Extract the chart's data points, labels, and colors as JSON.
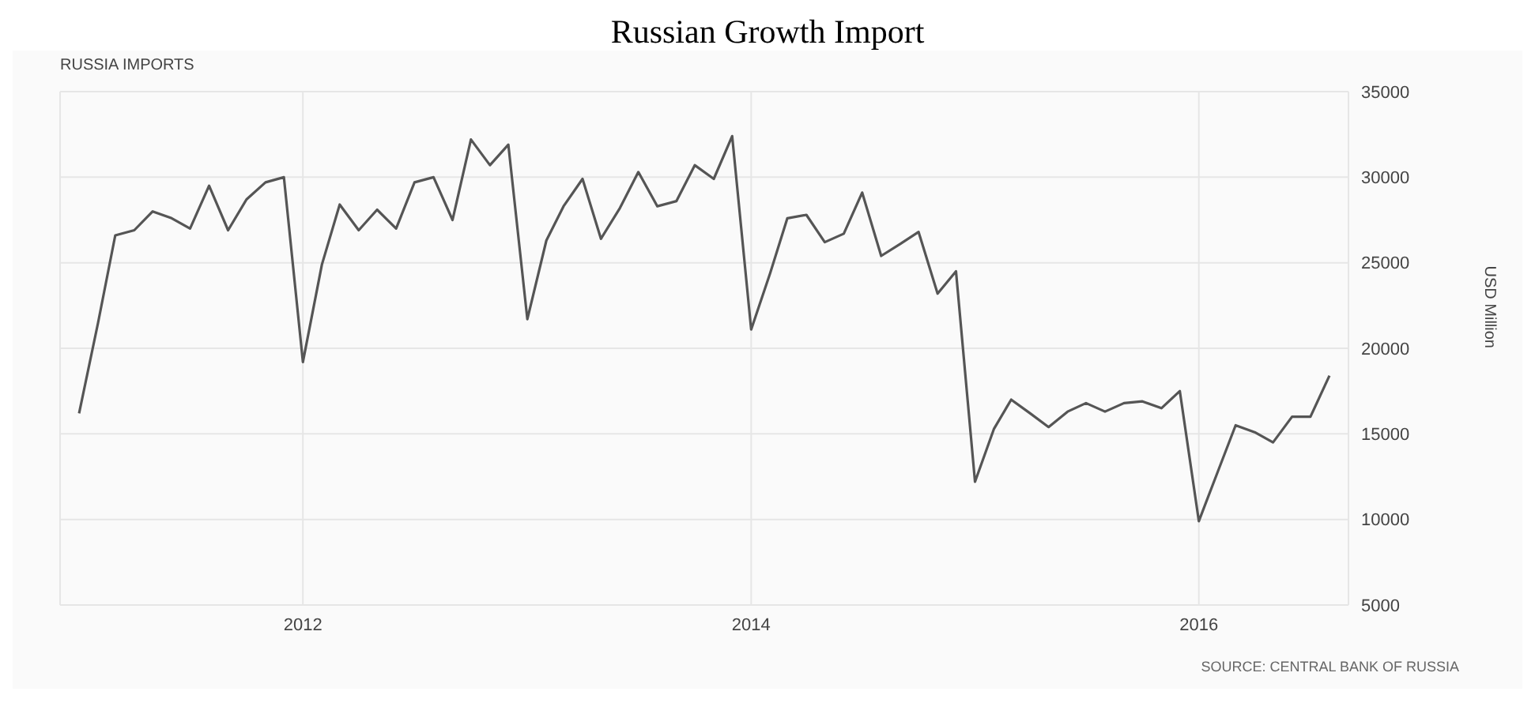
{
  "chart_data": {
    "type": "line",
    "title": "Russian Growth Import",
    "subtitle": "RUSSIA IMPORTS",
    "ylabel": "USD Million",
    "annotations": [
      "SOURCE: CENTRAL BANK OF RUSSIA"
    ],
    "x": [
      "2011-01",
      "2011-02",
      "2011-03",
      "2011-04",
      "2011-05",
      "2011-06",
      "2011-07",
      "2011-08",
      "2011-09",
      "2011-10",
      "2011-11",
      "2011-12",
      "2012-01",
      "2012-02",
      "2012-03",
      "2012-04",
      "2012-05",
      "2012-06",
      "2012-07",
      "2012-08",
      "2012-09",
      "2012-10",
      "2012-11",
      "2012-12",
      "2013-01",
      "2013-02",
      "2013-03",
      "2013-04",
      "2013-05",
      "2013-06",
      "2013-07",
      "2013-08",
      "2013-09",
      "2013-10",
      "2013-11",
      "2013-12",
      "2014-01",
      "2014-02",
      "2014-03",
      "2014-04",
      "2014-05",
      "2014-06",
      "2014-07",
      "2014-08",
      "2014-09",
      "2014-10",
      "2014-11",
      "2014-12",
      "2015-01",
      "2015-02",
      "2015-03",
      "2015-04",
      "2015-05",
      "2015-06",
      "2015-07",
      "2015-08",
      "2015-09",
      "2015-10",
      "2015-11",
      "2015-12",
      "2016-01",
      "2016-02",
      "2016-03",
      "2016-04",
      "2016-05",
      "2016-06",
      "2016-07",
      "2016-08"
    ],
    "series": [
      {
        "color": "#555555",
        "values": [
          16200,
          21500,
          26600,
          26900,
          28000,
          27600,
          27000,
          29500,
          26900,
          28700,
          29700,
          30000,
          19200,
          24900,
          28400,
          26900,
          28100,
          27000,
          29700,
          30000,
          27500,
          32200,
          30700,
          31900,
          21700,
          26300,
          28300,
          29900,
          26400,
          28200,
          30300,
          28300,
          28600,
          30700,
          29900,
          32400,
          21100,
          24400,
          27600,
          27800,
          26200,
          26700,
          29100,
          25400,
          26100,
          26800,
          23200,
          24500,
          12200,
          15300,
          17000,
          16200,
          15400,
          16300,
          16800,
          16300,
          16800,
          16900,
          16500,
          17500,
          9900,
          12800,
          15500,
          15100,
          14500,
          16000,
          16000,
          18400
        ]
      }
    ],
    "xlim": [
      "2010-12",
      "2016-09"
    ],
    "xticks": [
      "2012",
      "2014",
      "2016"
    ],
    "ylim": [
      5000,
      35000
    ],
    "yticks": [
      5000,
      10000,
      15000,
      20000,
      25000,
      30000,
      35000
    ],
    "grid": true,
    "legend": false,
    "marker": "none",
    "line_style": "solid"
  }
}
